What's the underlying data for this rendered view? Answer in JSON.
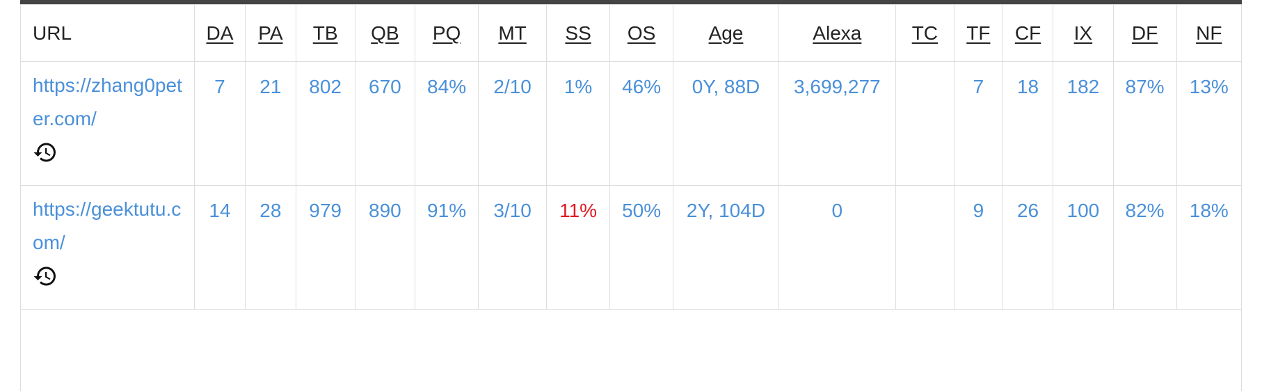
{
  "columns": {
    "url": "URL",
    "da": "DA",
    "pa": "PA",
    "tb": "TB",
    "qb": "QB",
    "pq": "PQ",
    "mt": "MT",
    "ss": "SS",
    "os": "OS",
    "age": "Age",
    "alexa": "Alexa",
    "tc": "TC",
    "tf": "TF",
    "cf": "CF",
    "ix": "IX",
    "df": "DF",
    "nf": "NF"
  },
  "rows": [
    {
      "url": "https://zhang0peter.com/",
      "da": "7",
      "pa": "21",
      "tb": "802",
      "qb": "670",
      "pq": "84%",
      "mt": "2/10",
      "ss": "1%",
      "os": "46%",
      "age": "0Y, 88D",
      "alexa": "3,699,277",
      "tc": "",
      "tf": "7",
      "cf": "18",
      "ix": "182",
      "df": "87%",
      "nf": "13%",
      "history_icon": "history-icon"
    },
    {
      "url": "https://geektutu.com/",
      "da": "14",
      "pa": "28",
      "tb": "979",
      "qb": "890",
      "pq": "91%",
      "mt": "3/10",
      "ss": "11%",
      "os": "50%",
      "age": "2Y, 104D",
      "alexa": "0",
      "tc": "",
      "tf": "9",
      "cf": "26",
      "ix": "100",
      "df": "82%",
      "nf": "18%",
      "history_icon": "history-icon"
    }
  ],
  "colors": {
    "link": "#4a90d9",
    "warning": "#e0191f",
    "header_text": "#222222",
    "top_bar": "#444444"
  }
}
